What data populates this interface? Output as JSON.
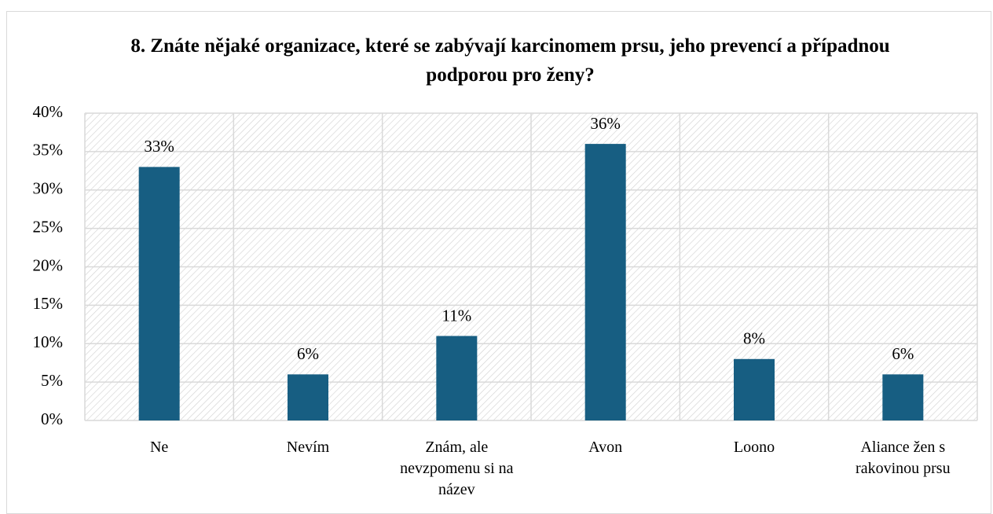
{
  "chart_data": {
    "type": "bar",
    "title": "8. Znáte nějaké organizace, které se zabývají karcinomem prsu, jeho prevencí a případnou podporou pro ženy?",
    "categories": [
      "Ne",
      "Nevím",
      "Znám, ale nevzpomenu si na název",
      "Avon",
      "Loono",
      "Aliance žen s rakovinou prsu"
    ],
    "values": [
      33,
      6,
      11,
      36,
      8,
      6
    ],
    "value_labels": [
      "33%",
      "6%",
      "11%",
      "36%",
      "8%",
      "6%"
    ],
    "color": "#175e82",
    "ylim": [
      0,
      40
    ],
    "yticks": [
      {
        "value": 0,
        "label": "0%"
      },
      {
        "value": 5,
        "label": "5%"
      },
      {
        "value": 10,
        "label": "10%"
      },
      {
        "value": 15,
        "label": "15%"
      },
      {
        "value": 20,
        "label": "20%"
      },
      {
        "value": 25,
        "label": "25%"
      },
      {
        "value": 30,
        "label": "30%"
      },
      {
        "value": 35,
        "label": "35%"
      },
      {
        "value": 40,
        "label": "40%"
      }
    ],
    "grid": true
  }
}
